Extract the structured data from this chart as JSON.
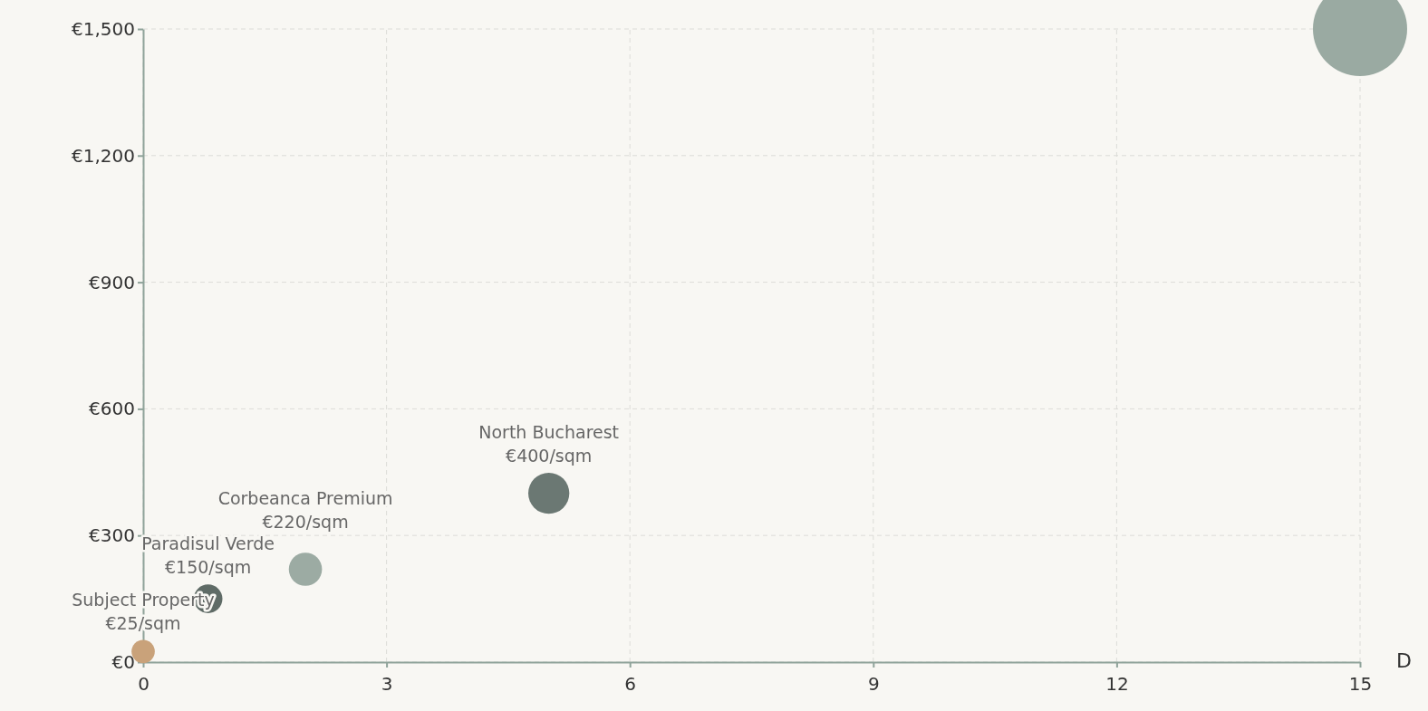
{
  "chart_data": {
    "type": "bubble",
    "xlabel": "D",
    "x": [
      0,
      0.8,
      2,
      5,
      15
    ],
    "values": [
      25,
      150,
      220,
      400,
      1500
    ],
    "sizes": [
      0.061,
      0.093,
      0.124,
      0.19,
      1
    ],
    "colors": [
      "#c9a27a",
      "#5f6b66",
      "#9caba3",
      "#6b7873",
      "#9aaaa2"
    ],
    "xlim": [
      0,
      15
    ],
    "xticks": [
      0,
      3,
      6,
      9,
      12,
      15
    ],
    "ylim": [
      0,
      1500
    ],
    "yticks": [
      {
        "value": 0,
        "label": "€0"
      },
      {
        "value": 300,
        "label": "€300"
      },
      {
        "value": 600,
        "label": "€600"
      },
      {
        "value": 900,
        "label": "€900"
      },
      {
        "value": 1200,
        "label": "€1,200"
      },
      {
        "value": 1500,
        "label": "€1,500"
      }
    ],
    "grid": true,
    "annotations": [
      {
        "text": "Subject Property\n€25/sqm",
        "x": 0,
        "y": 25
      },
      {
        "text": "Paradisul Verde\n€150/sqm",
        "x": 0.8,
        "y": 150
      },
      {
        "text": "Corbeanca Premium\n€220/sqm",
        "x": 2,
        "y": 220
      },
      {
        "text": "North Bucharest\n€400/sqm",
        "x": 5,
        "y": 400
      }
    ]
  }
}
